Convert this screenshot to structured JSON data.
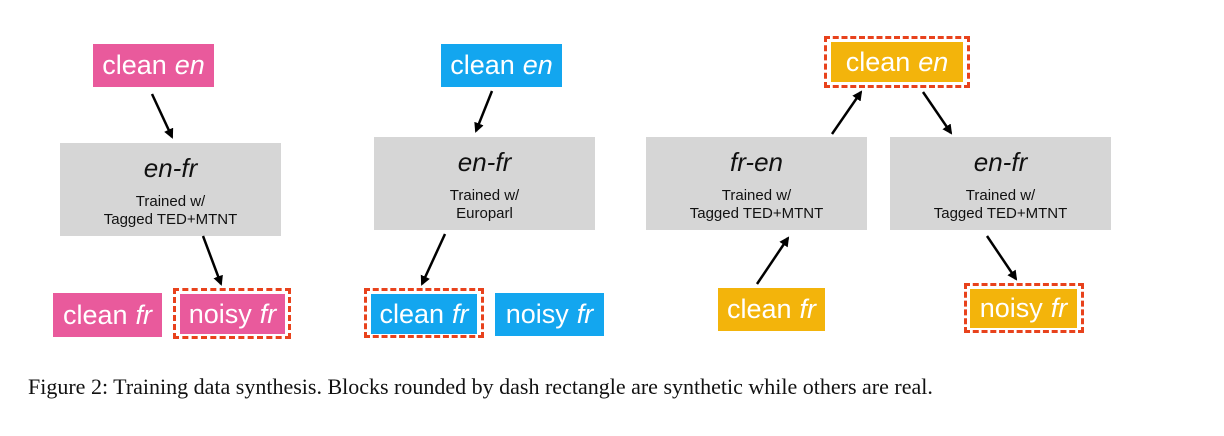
{
  "colors": {
    "pink": "#e95a9c",
    "blue": "#13a6ef",
    "gold": "#f3b40b",
    "model_bg": "#d6d6d6",
    "synthetic_dash": "#e8421c"
  },
  "panel1": {
    "clean_en": {
      "word": "clean",
      "lang": "en"
    },
    "model": {
      "title": "en-fr",
      "line1": "Trained w/",
      "line2": "Tagged TED+MTNT"
    },
    "clean_fr": {
      "word": "clean",
      "lang": "fr"
    },
    "noisy_fr": {
      "word": "noisy",
      "lang": "fr"
    }
  },
  "panel2": {
    "clean_en": {
      "word": "clean",
      "lang": "en"
    },
    "model": {
      "title": "en-fr",
      "line1": "Trained w/",
      "line2": "Europarl"
    },
    "clean_fr": {
      "word": "clean",
      "lang": "fr"
    },
    "noisy_fr": {
      "word": "noisy",
      "lang": "fr"
    }
  },
  "panel3": {
    "clean_en": {
      "word": "clean",
      "lang": "en"
    },
    "model_back": {
      "title": "fr-en",
      "line1": "Trained w/",
      "line2": "Tagged TED+MTNT"
    },
    "model_fwd": {
      "title": "en-fr",
      "line1": "Trained w/",
      "line2": "Tagged TED+MTNT"
    },
    "clean_fr": {
      "word": "clean",
      "lang": "fr"
    },
    "noisy_fr": {
      "word": "noisy",
      "lang": "fr"
    }
  },
  "caption": "Figure 2: Training data synthesis. Blocks rounded by dash rectangle are synthetic while others are real."
}
